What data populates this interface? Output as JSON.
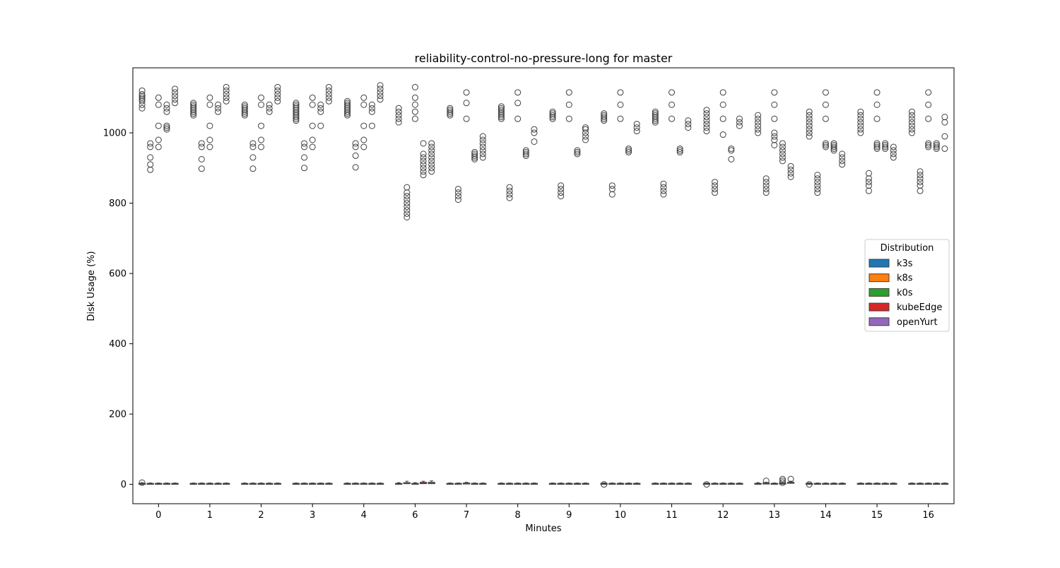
{
  "chart_data": {
    "type": "box",
    "title": "reliability-control-no-pressure-long for master",
    "xlabel": "Minutes",
    "ylabel": "Disk Usage (%)",
    "ylim": [
      -55,
      1185
    ],
    "yticks": [
      0,
      200,
      400,
      600,
      800,
      1000
    ],
    "grid": false,
    "categories": [
      "0",
      "1",
      "2",
      "3",
      "4",
      "6",
      "7",
      "8",
      "9",
      "10",
      "11",
      "12",
      "13",
      "14",
      "15",
      "16"
    ],
    "legend": {
      "title": "Distribution",
      "placement": "center-right",
      "entries": [
        "k3s",
        "k8s",
        "k0s",
        "kubeEdge",
        "openYurt"
      ]
    },
    "series": [
      {
        "name": "k3s",
        "color": "#1f77b4",
        "box_stats": [
          [
            0,
            1,
            2,
            3,
            5
          ],
          [
            0,
            1,
            2,
            3,
            4
          ],
          [
            0,
            1,
            2,
            3,
            4
          ],
          [
            0,
            1,
            2,
            3,
            4
          ],
          [
            0,
            1,
            2,
            3,
            4
          ],
          [
            0,
            1,
            2,
            3,
            5
          ],
          [
            0,
            1,
            2,
            3,
            4
          ],
          [
            0,
            1,
            2,
            3,
            4
          ],
          [
            0,
            1,
            2,
            3,
            4
          ],
          [
            0,
            1,
            2,
            3,
            4
          ],
          [
            0,
            1,
            2,
            3,
            4
          ],
          [
            0,
            1,
            2,
            3,
            4
          ],
          [
            0,
            1,
            2,
            3,
            5
          ],
          [
            0,
            1,
            2,
            3,
            4
          ],
          [
            0,
            1,
            2,
            3,
            4
          ],
          [
            0,
            1,
            2,
            3,
            4
          ]
        ],
        "outliers": [
          [
            1070,
            1080,
            1090,
            1095,
            1100,
            1105,
            1110,
            1120,
            5
          ],
          [
            1050,
            1055,
            1060,
            1065,
            1070,
            1075,
            1080,
            1085
          ],
          [
            1050,
            1055,
            1060,
            1065,
            1070,
            1075,
            1080
          ],
          [
            1035,
            1040,
            1045,
            1050,
            1055,
            1060,
            1065,
            1070,
            1075,
            1080,
            1085
          ],
          [
            1050,
            1055,
            1060,
            1065,
            1070,
            1075,
            1080,
            1085,
            1090
          ],
          [
            1030,
            1040,
            1050,
            1060,
            1070
          ],
          [
            1050,
            1055,
            1060,
            1065,
            1070
          ],
          [
            1040,
            1045,
            1050,
            1055,
            1060,
            1065,
            1070,
            1075
          ],
          [
            1040,
            1045,
            1050,
            1055,
            1060
          ],
          [
            1035,
            1040,
            1045,
            1050,
            1055,
            0
          ],
          [
            1030,
            1035,
            1040,
            1045,
            1050,
            1055,
            1060
          ],
          [
            1005,
            1015,
            1025,
            1035,
            1045,
            1055,
            1065,
            0
          ],
          [
            1000,
            1010,
            1020,
            1030,
            1040,
            1050
          ],
          [
            990,
            1000,
            1010,
            1020,
            1030,
            1040,
            1050,
            1060,
            0
          ],
          [
            1000,
            1010,
            1020,
            1030,
            1040,
            1050,
            1060
          ],
          [
            1000,
            1010,
            1020,
            1030,
            1040,
            1050,
            1060
          ]
        ]
      },
      {
        "name": "k8s",
        "color": "#ff7f0e",
        "box_stats": [
          [
            0,
            1,
            2,
            3,
            4
          ],
          [
            0,
            1,
            2,
            3,
            4
          ],
          [
            0,
            1,
            2,
            3,
            4
          ],
          [
            0,
            1,
            2,
            3,
            4
          ],
          [
            0,
            1,
            2,
            3,
            4
          ],
          [
            1,
            2,
            3,
            5,
            9
          ],
          [
            0,
            1,
            2,
            3,
            4
          ],
          [
            0,
            1,
            2,
            3,
            4
          ],
          [
            0,
            1,
            2,
            3,
            4
          ],
          [
            0,
            1,
            2,
            3,
            4
          ],
          [
            0,
            1,
            2,
            3,
            4
          ],
          [
            0,
            1,
            2,
            3,
            4
          ],
          [
            1,
            2,
            3,
            4,
            6
          ],
          [
            0,
            1,
            2,
            3,
            4
          ],
          [
            0,
            1,
            2,
            3,
            4
          ],
          [
            0,
            1,
            2,
            3,
            4
          ]
        ],
        "outliers": [
          [
            895,
            910,
            930,
            960,
            970
          ],
          [
            898,
            925,
            960,
            970
          ],
          [
            898,
            930,
            960,
            970
          ],
          [
            900,
            930,
            960,
            970
          ],
          [
            902,
            935,
            960,
            970
          ],
          [
            760,
            770,
            780,
            790,
            800,
            810,
            820,
            830,
            845
          ],
          [
            810,
            820,
            830,
            840
          ],
          [
            815,
            825,
            835,
            845
          ],
          [
            820,
            830,
            840,
            850
          ],
          [
            825,
            840,
            850
          ],
          [
            825,
            835,
            845,
            855
          ],
          [
            830,
            840,
            850,
            860
          ],
          [
            830,
            840,
            850,
            860,
            870,
            10
          ],
          [
            830,
            840,
            850,
            860,
            870,
            880
          ],
          [
            835,
            850,
            860,
            870,
            885
          ],
          [
            835,
            850,
            860,
            870,
            880,
            890
          ]
        ]
      },
      {
        "name": "k0s",
        "color": "#2ca02c",
        "box_stats": [
          [
            0,
            1,
            2,
            3,
            4
          ],
          [
            0,
            1,
            2,
            3,
            4
          ],
          [
            0,
            1,
            2,
            3,
            4
          ],
          [
            0,
            1,
            2,
            3,
            4
          ],
          [
            0,
            1,
            2,
            3,
            4
          ],
          [
            0,
            1,
            2,
            3,
            5
          ],
          [
            1,
            2,
            3,
            4,
            6
          ],
          [
            0,
            1,
            2,
            3,
            4
          ],
          [
            0,
            1,
            2,
            3,
            4
          ],
          [
            0,
            1,
            2,
            3,
            4
          ],
          [
            0,
            1,
            2,
            3,
            4
          ],
          [
            0,
            1,
            2,
            3,
            4
          ],
          [
            0,
            1,
            2,
            3,
            4
          ],
          [
            0,
            1,
            2,
            3,
            4
          ],
          [
            0,
            1,
            2,
            3,
            4
          ],
          [
            0,
            1,
            2,
            3,
            4
          ]
        ],
        "outliers": [
          [
            960,
            980,
            1020,
            1080,
            1100
          ],
          [
            960,
            980,
            1020,
            1080,
            1100
          ],
          [
            960,
            980,
            1020,
            1080,
            1100
          ],
          [
            960,
            980,
            1020,
            1080,
            1100
          ],
          [
            960,
            980,
            1020,
            1080,
            1100
          ],
          [
            1040,
            1060,
            1080,
            1100,
            1130
          ],
          [
            1040,
            1085,
            1115
          ],
          [
            1040,
            1085,
            1115
          ],
          [
            1040,
            1080,
            1115
          ],
          [
            1040,
            1080,
            1115
          ],
          [
            1040,
            1080,
            1115
          ],
          [
            995,
            1040,
            1080,
            1115
          ],
          [
            965,
            980,
            990,
            1000,
            1040,
            1080,
            1115
          ],
          [
            960,
            965,
            970,
            1040,
            1080,
            1115
          ],
          [
            955,
            960,
            965,
            970,
            1040,
            1080,
            1115
          ],
          [
            960,
            965,
            970,
            1040,
            1080,
            1115
          ]
        ]
      },
      {
        "name": "kubeEdge",
        "color": "#d62728",
        "box_stats": [
          [
            0,
            1,
            2,
            3,
            4
          ],
          [
            0,
            1,
            2,
            3,
            4
          ],
          [
            0,
            1,
            2,
            3,
            4
          ],
          [
            0,
            1,
            2,
            3,
            4
          ],
          [
            0,
            1,
            2,
            3,
            4
          ],
          [
            1,
            2,
            3,
            6,
            9
          ],
          [
            0,
            1,
            2,
            3,
            4
          ],
          [
            0,
            1,
            2,
            3,
            4
          ],
          [
            0,
            1,
            2,
            3,
            4
          ],
          [
            0,
            1,
            2,
            3,
            4
          ],
          [
            0,
            1,
            2,
            3,
            4
          ],
          [
            0,
            1,
            2,
            3,
            4
          ],
          [
            1,
            2,
            3,
            4,
            7
          ],
          [
            0,
            1,
            2,
            3,
            4
          ],
          [
            0,
            1,
            2,
            3,
            4
          ],
          [
            0,
            1,
            2,
            3,
            4
          ]
        ],
        "outliers": [
          [
            1010,
            1015,
            1020,
            1060,
            1070,
            1080
          ],
          [
            1060,
            1070,
            1080
          ],
          [
            1060,
            1070,
            1080
          ],
          [
            1060,
            1070,
            1080,
            1020
          ],
          [
            1060,
            1070,
            1080,
            1020
          ],
          [
            880,
            890,
            900,
            910,
            920,
            930,
            940,
            970
          ],
          [
            925,
            930,
            935,
            940,
            945
          ],
          [
            935,
            940,
            945,
            950
          ],
          [
            940,
            945,
            950
          ],
          [
            945,
            950,
            955
          ],
          [
            945,
            950,
            955
          ],
          [
            925,
            950,
            955
          ],
          [
            920,
            930,
            940,
            950,
            960,
            970,
            5,
            10,
            15
          ],
          [
            950,
            955,
            960,
            965,
            970
          ],
          [
            955,
            960,
            965,
            970
          ],
          [
            955,
            960,
            965,
            970
          ]
        ]
      },
      {
        "name": "openYurt",
        "color": "#9467bd",
        "box_stats": [
          [
            0,
            1,
            2,
            3,
            4
          ],
          [
            0,
            1,
            2,
            3,
            4
          ],
          [
            0,
            1,
            2,
            3,
            4
          ],
          [
            0,
            1,
            2,
            3,
            4
          ],
          [
            0,
            1,
            2,
            3,
            4
          ],
          [
            1,
            2,
            3,
            6,
            10
          ],
          [
            0,
            1,
            2,
            3,
            4
          ],
          [
            0,
            1,
            2,
            3,
            4
          ],
          [
            0,
            1,
            2,
            3,
            4
          ],
          [
            0,
            1,
            2,
            3,
            4
          ],
          [
            0,
            1,
            2,
            3,
            4
          ],
          [
            0,
            1,
            2,
            3,
            4
          ],
          [
            2,
            3,
            4,
            6,
            9
          ],
          [
            0,
            1,
            2,
            3,
            4
          ],
          [
            0,
            1,
            2,
            3,
            4
          ],
          [
            0,
            1,
            2,
            3,
            4
          ]
        ],
        "outliers": [
          [
            1085,
            1095,
            1105,
            1115,
            1125
          ],
          [
            1090,
            1100,
            1110,
            1120,
            1130
          ],
          [
            1090,
            1100,
            1110,
            1120,
            1130
          ],
          [
            1090,
            1100,
            1110,
            1120,
            1130
          ],
          [
            1095,
            1105,
            1115,
            1125,
            1135
          ],
          [
            890,
            900,
            910,
            920,
            930,
            940,
            950,
            960,
            970
          ],
          [
            930,
            940,
            950,
            960,
            970,
            980,
            990
          ],
          [
            975,
            1000,
            1010
          ],
          [
            980,
            990,
            1000,
            1010,
            1015
          ],
          [
            1005,
            1015,
            1025
          ],
          [
            1015,
            1025,
            1035
          ],
          [
            1020,
            1030,
            1040
          ],
          [
            875,
            885,
            895,
            905,
            15
          ],
          [
            910,
            920,
            930,
            940
          ],
          [
            930,
            940,
            950,
            960
          ],
          [
            955,
            990,
            1030,
            1045
          ]
        ]
      }
    ]
  }
}
